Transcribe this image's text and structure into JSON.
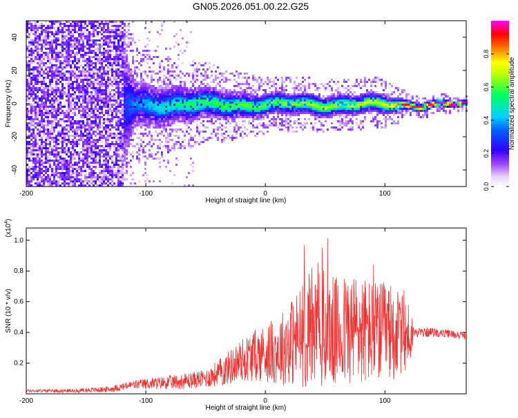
{
  "figure_title": "GN05.2026.051.00.22.G25",
  "chart_data": [
    {
      "type": "heatmap",
      "title": "GN05.2026.051.00.22.G25",
      "xlabel": "Height of straight line (km)",
      "ylabel": "Frequency (Hz)",
      "xlim": [
        -200,
        168
      ],
      "ylim": [
        -50,
        50
      ],
      "x_ticks": [
        -200,
        -100,
        0,
        100
      ],
      "x_tick_labels": [
        "-200",
        "-100",
        "0",
        "100"
      ],
      "y_ticks": [
        -40,
        -20,
        0,
        20,
        40
      ],
      "y_tick_labels": [
        "-40",
        "-20",
        "0",
        "20",
        "40"
      ],
      "colorbar": {
        "label": "Normalized spectral amplitude",
        "range": [
          0,
          1
        ],
        "ticks": [
          0.0,
          0.2,
          0.4,
          0.6,
          0.8
        ],
        "tick_labels": [
          "0.0",
          "0.2",
          "0.4",
          "0.6",
          "0.8"
        ],
        "colors": [
          "#ffffff",
          "#e8d0ff",
          "#8000ff",
          "#0000ff",
          "#00d0ff",
          "#00ff60",
          "#ffff00",
          "#ff8000",
          "#ff0000",
          "#ff00ff"
        ]
      },
      "description_points": [
        {
          "x": -200,
          "spread_hz": 50,
          "amplitude": 0.12
        },
        {
          "x": -125,
          "spread_hz": 50,
          "amplitude": 0.1
        },
        {
          "x": -110,
          "spread_hz": 14,
          "amplitude": 0.25
        },
        {
          "x": -60,
          "spread_hz": 10,
          "amplitude": 0.45
        },
        {
          "x": 0,
          "spread_hz": 7,
          "amplitude": 0.5
        },
        {
          "x": 100,
          "spread_hz": 6,
          "amplitude": 0.6
        },
        {
          "x": 120,
          "spread_hz": 3,
          "amplitude": 0.85
        },
        {
          "x": 168,
          "spread_hz": 2,
          "amplitude": 0.9
        }
      ]
    },
    {
      "type": "line",
      "xlabel": "Height of straight line (km)",
      "ylabel": "SNR (10 * v/v)",
      "y_multiplier": "(x10",
      "y_multiplier_exp": "4",
      "y_multiplier_close": ")",
      "xlim": [
        -200,
        168
      ],
      "ylim": [
        0,
        1.08
      ],
      "x_ticks": [
        -200,
        -100,
        0,
        100
      ],
      "x_tick_labels": [
        "-200",
        "-100",
        "0",
        "100"
      ],
      "y_ticks": [
        0.2,
        0.4,
        0.6,
        0.8,
        1.0
      ],
      "y_tick_labels": [
        "0.2",
        "0.4",
        "0.6",
        "0.8",
        "1.0"
      ],
      "color": "#ee3333",
      "envelope": {
        "x": [
          -200,
          -160,
          -130,
          -110,
          -90,
          -70,
          -50,
          -35,
          -20,
          -5,
          10,
          20,
          30,
          45,
          60,
          75,
          90,
          105,
          115,
          122,
          124,
          140,
          168
        ],
        "mean": [
          0.02,
          0.02,
          0.03,
          0.06,
          0.07,
          0.08,
          0.1,
          0.15,
          0.22,
          0.26,
          0.28,
          0.33,
          0.38,
          0.42,
          0.4,
          0.42,
          0.4,
          0.4,
          0.38,
          0.38,
          0.4,
          0.4,
          0.38
        ],
        "amp": [
          0.01,
          0.012,
          0.02,
          0.03,
          0.04,
          0.05,
          0.06,
          0.1,
          0.14,
          0.18,
          0.22,
          0.28,
          0.34,
          0.4,
          0.36,
          0.38,
          0.34,
          0.32,
          0.26,
          0.22,
          0.03,
          0.03,
          0.025
        ]
      }
    }
  ]
}
